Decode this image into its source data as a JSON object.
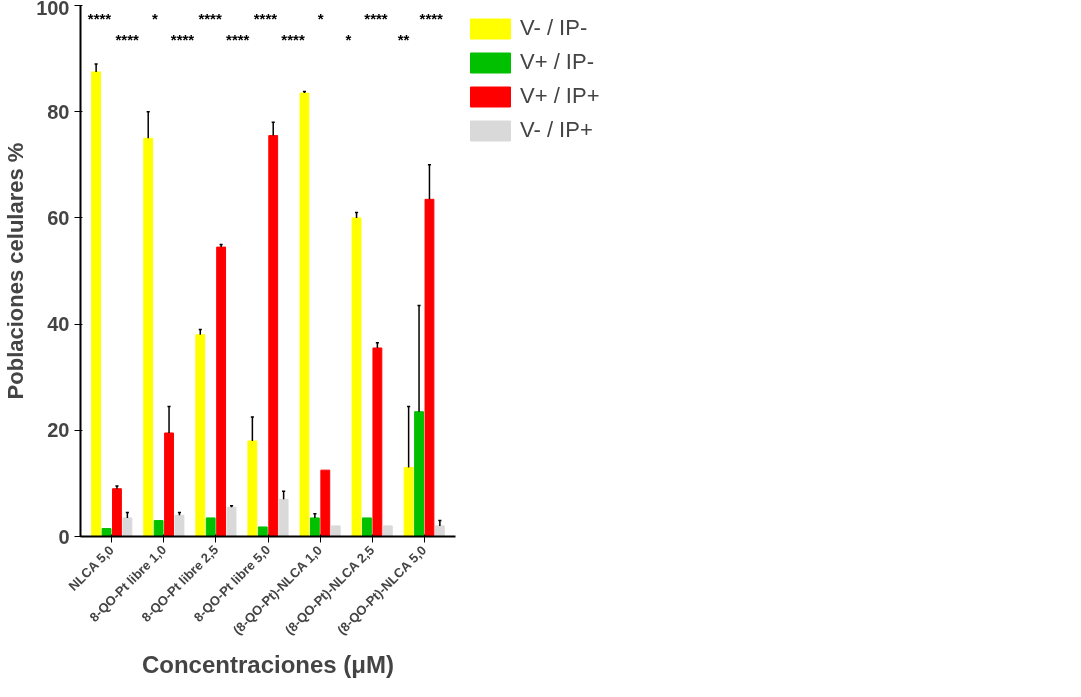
{
  "chart_data": {
    "type": "bar",
    "xlabel": "Concentraciones (μM)",
    "ylabel": "Poblaciones celulares %",
    "categories": [
      "NLCA 5,0",
      "8-QO-Pt libre 1,0",
      "8-QO-Pt libre 2,5",
      "8-QO-Pt libre 5,0",
      "(8-QO-Pt)-NLCA 1,0",
      "(8-QO-Pt)-NLCA 2,5",
      "(8-QO-Pt)-NLCA 5,0"
    ],
    "series": [
      {
        "name": "V- / IP-",
        "color": "#ffff00",
        "values": [
          87.5,
          75,
          38,
          18,
          83.5,
          60,
          13
        ],
        "errors": [
          [
            87.5,
            89
          ],
          [
            75,
            80
          ],
          [
            38,
            39
          ],
          [
            18,
            22.5
          ],
          [
            83.5,
            83.8
          ],
          [
            60,
            61
          ],
          [
            13,
            24.5
          ]
        ]
      },
      {
        "name": "V+ / IP-",
        "color": "#00c000",
        "values": [
          1.5,
          3,
          3.5,
          1.8,
          3.5,
          3.5,
          23.5
        ],
        "errors": [
          null,
          null,
          null,
          null,
          [
            3.5,
            4.3
          ],
          null,
          [
            23.5,
            43.5
          ]
        ]
      },
      {
        "name": "V+ / IP+",
        "color": "#ff0000",
        "values": [
          9,
          19.5,
          54.5,
          75.5,
          12.5,
          35.5,
          63.5
        ],
        "errors": [
          [
            9,
            9.5
          ],
          [
            19.5,
            24.5
          ],
          [
            54.5,
            55
          ],
          [
            75.5,
            78
          ],
          null,
          [
            35.5,
            36.5
          ],
          [
            63.5,
            70
          ]
        ]
      },
      {
        "name": "V- / IP+",
        "color": "#d9d9d9",
        "values": [
          3.5,
          4,
          5.5,
          7,
          2,
          2,
          2
        ],
        "errors": [
          [
            3.5,
            4.5
          ],
          [
            4,
            4.5
          ],
          [
            5.5,
            5.8
          ],
          [
            7,
            8.5
          ],
          null,
          null,
          [
            2,
            3
          ]
        ]
      }
    ],
    "ylim": [
      0,
      100
    ],
    "yticks": [
      0,
      20,
      40,
      60,
      80,
      100
    ],
    "grid": false,
    "legend": "top right",
    "annotations": [
      "****",
      "****",
      "*",
      "****",
      "****",
      "****",
      "****",
      "****",
      "*",
      "*",
      "****",
      "**",
      "****"
    ]
  }
}
